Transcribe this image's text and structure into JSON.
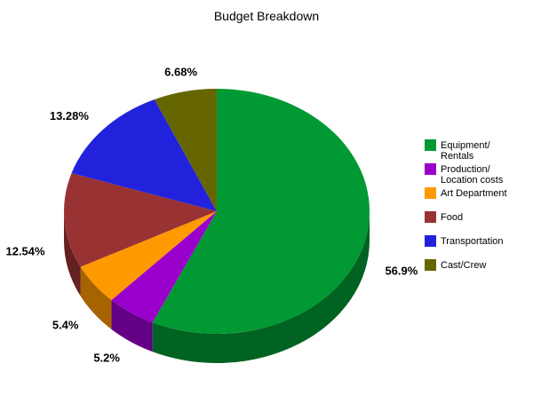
{
  "chart_data": {
    "type": "pie",
    "title": "Budget Breakdown",
    "three_d": true,
    "legend_position": "right",
    "slices": [
      {
        "label": "Equipment/ Rentals",
        "legend_lines": [
          "Equipment/",
          "Rentals"
        ],
        "value": 56.9,
        "display": "56.9%",
        "color": "#009933"
      },
      {
        "label": "Production/ Location costs",
        "legend_lines": [
          "Production/",
          "Location costs"
        ],
        "value": 5.2,
        "display": "5.2%",
        "color": "#9900cc"
      },
      {
        "label": "Art Department",
        "legend_lines": [
          "Art Department"
        ],
        "value": 5.4,
        "display": "5.4%",
        "color": "#ff9900"
      },
      {
        "label": "Food",
        "legend_lines": [
          "Food"
        ],
        "value": 12.54,
        "display": "12.54%",
        "color": "#993333"
      },
      {
        "label": "Transportation",
        "legend_lines": [
          "Transportation"
        ],
        "value": 13.28,
        "display": "13.28%",
        "color": "#2222dd"
      },
      {
        "label": "Cast/Crew",
        "legend_lines": [
          "Cast/Crew"
        ],
        "value": 6.68,
        "display": "6.68%",
        "color": "#666600"
      }
    ]
  }
}
